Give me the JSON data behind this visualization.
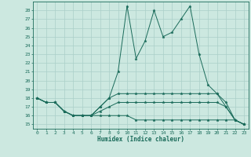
{
  "xlabel": "Humidex (Indice chaleur)",
  "xlim": [
    -0.5,
    23.5
  ],
  "ylim": [
    14.5,
    29.0
  ],
  "yticks": [
    15,
    16,
    17,
    18,
    19,
    20,
    21,
    22,
    23,
    24,
    25,
    26,
    27,
    28
  ],
  "xticks": [
    0,
    1,
    2,
    3,
    4,
    5,
    6,
    7,
    8,
    9,
    10,
    11,
    12,
    13,
    14,
    15,
    16,
    17,
    18,
    19,
    20,
    21,
    22,
    23
  ],
  "background_color": "#cce8e0",
  "grid_color": "#aacfc8",
  "line_color": "#1a6b5a",
  "series": [
    [
      18.0,
      17.5,
      17.5,
      16.5,
      16.0,
      16.0,
      16.0,
      17.0,
      18.0,
      21.0,
      28.5,
      22.5,
      24.5,
      28.0,
      25.0,
      25.5,
      27.0,
      28.5,
      23.0,
      19.5,
      18.5,
      17.0,
      15.5,
      15.0
    ],
    [
      18.0,
      17.5,
      17.5,
      16.5,
      16.0,
      16.0,
      16.0,
      17.0,
      18.0,
      18.5,
      18.5,
      18.5,
      18.5,
      18.5,
      18.5,
      18.5,
      18.5,
      18.5,
      18.5,
      18.5,
      18.5,
      17.5,
      15.5,
      15.0
    ],
    [
      18.0,
      17.5,
      17.5,
      16.5,
      16.0,
      16.0,
      16.0,
      16.5,
      17.0,
      17.5,
      17.5,
      17.5,
      17.5,
      17.5,
      17.5,
      17.5,
      17.5,
      17.5,
      17.5,
      17.5,
      17.5,
      17.0,
      15.5,
      15.0
    ],
    [
      18.0,
      17.5,
      17.5,
      16.5,
      16.0,
      16.0,
      16.0,
      16.0,
      16.0,
      16.0,
      16.0,
      15.5,
      15.5,
      15.5,
      15.5,
      15.5,
      15.5,
      15.5,
      15.5,
      15.5,
      15.5,
      15.5,
      15.5,
      15.0
    ]
  ],
  "figsize": [
    3.2,
    2.0
  ],
  "dpi": 100
}
